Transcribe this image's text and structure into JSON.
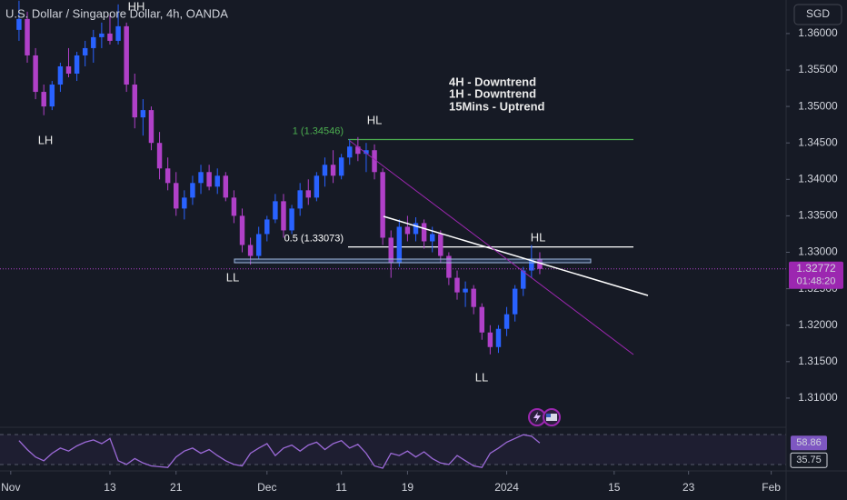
{
  "header": {
    "title": "U.S. Dollar / Singapore Dollar, 4h, OANDA",
    "currency": "SGD"
  },
  "chart_data": {
    "type": "candlestick",
    "x": [
      1,
      2,
      3,
      4,
      5,
      6,
      7,
      8,
      9,
      10,
      11,
      12,
      13,
      14,
      15,
      16,
      17,
      18,
      19,
      20,
      21,
      22,
      23,
      24,
      25,
      26,
      27,
      28,
      29,
      30,
      31,
      32,
      33,
      34,
      35,
      36,
      37,
      38,
      39,
      40,
      41,
      42,
      43,
      44,
      45,
      46,
      47,
      48,
      49,
      50,
      51,
      52,
      53,
      54,
      55,
      56,
      57,
      58,
      59,
      60,
      61,
      62,
      63,
      64
    ],
    "open": [
      1.3605,
      1.362,
      1.357,
      1.352,
      1.35,
      1.353,
      1.3555,
      1.3545,
      1.357,
      1.358,
      1.3595,
      1.36,
      1.359,
      1.361,
      1.353,
      1.3485,
      1.3495,
      1.345,
      1.3415,
      1.3395,
      1.336,
      1.3375,
      1.3395,
      1.341,
      1.339,
      1.3405,
      1.3375,
      1.335,
      1.331,
      1.3295,
      1.3325,
      1.3345,
      1.337,
      1.333,
      1.336,
      1.3385,
      1.3375,
      1.3405,
      1.342,
      1.3405,
      1.343,
      1.3445,
      1.3435,
      1.344,
      1.341,
      1.332,
      1.3285,
      1.3335,
      1.3325,
      1.334,
      1.3315,
      1.3325,
      1.3295,
      1.3265,
      1.3245,
      1.325,
      1.3225,
      1.319,
      1.317,
      1.3195,
      1.3215,
      1.325,
      1.3275,
      1.329
    ],
    "high": [
      1.3645,
      1.363,
      1.358,
      1.353,
      1.3535,
      1.356,
      1.358,
      1.3575,
      1.359,
      1.3605,
      1.3615,
      1.3625,
      1.364,
      1.3615,
      1.3545,
      1.351,
      1.35,
      1.3465,
      1.343,
      1.341,
      1.3385,
      1.3405,
      1.342,
      1.342,
      1.3415,
      1.341,
      1.3385,
      1.336,
      1.332,
      1.3335,
      1.335,
      1.338,
      1.338,
      1.3365,
      1.3395,
      1.34,
      1.341,
      1.343,
      1.344,
      1.3435,
      1.3455,
      1.3458,
      1.345,
      1.3448,
      1.3415,
      1.333,
      1.3345,
      1.335,
      1.3348,
      1.3345,
      1.3335,
      1.333,
      1.33,
      1.3275,
      1.326,
      1.3255,
      1.323,
      1.32,
      1.32,
      1.3225,
      1.3255,
      1.328,
      1.331,
      1.33
    ],
    "low": [
      1.359,
      1.356,
      1.351,
      1.3488,
      1.3495,
      1.352,
      1.354,
      1.3535,
      1.3555,
      1.356,
      1.358,
      1.3585,
      1.3585,
      1.352,
      1.347,
      1.346,
      1.344,
      1.34,
      1.3385,
      1.335,
      1.3345,
      1.3365,
      1.338,
      1.3385,
      1.338,
      1.337,
      1.334,
      1.33,
      1.3283,
      1.329,
      1.3315,
      1.334,
      1.332,
      1.3325,
      1.335,
      1.3365,
      1.337,
      1.339,
      1.3395,
      1.34,
      1.342,
      1.3425,
      1.341,
      1.34,
      1.331,
      1.3265,
      1.328,
      1.3315,
      1.3315,
      1.3305,
      1.33,
      1.3285,
      1.3255,
      1.3235,
      1.3225,
      1.3215,
      1.318,
      1.316,
      1.3162,
      1.3185,
      1.3205,
      1.324,
      1.3265,
      1.327
    ],
    "close": [
      1.362,
      1.357,
      1.352,
      1.35,
      1.353,
      1.3555,
      1.3545,
      1.357,
      1.358,
      1.3595,
      1.36,
      1.359,
      1.361,
      1.353,
      1.3485,
      1.3495,
      1.345,
      1.3415,
      1.3395,
      1.336,
      1.3375,
      1.3395,
      1.341,
      1.339,
      1.3405,
      1.3375,
      1.335,
      1.331,
      1.3295,
      1.3325,
      1.3345,
      1.337,
      1.333,
      1.336,
      1.3385,
      1.3375,
      1.3405,
      1.342,
      1.3405,
      1.343,
      1.3445,
      1.3435,
      1.344,
      1.341,
      1.332,
      1.3285,
      1.3335,
      1.3325,
      1.334,
      1.3315,
      1.3325,
      1.3295,
      1.3265,
      1.3245,
      1.325,
      1.3225,
      1.319,
      1.317,
      1.3195,
      1.3215,
      1.325,
      1.3275,
      1.329,
      1.32772
    ],
    "up_color": "#2962ff",
    "down_color": "#b040c8",
    "xlim": [
      -1.3,
      93.8
    ],
    "xticks": [
      {
        "value": 0,
        "label": "Nov"
      },
      {
        "value": 12,
        "label": "13"
      },
      {
        "value": 20,
        "label": "21"
      },
      {
        "value": 31,
        "label": "Dec"
      },
      {
        "value": 40,
        "label": "11"
      },
      {
        "value": 48,
        "label": "19"
      },
      {
        "value": 60,
        "label": "2024"
      },
      {
        "value": 73,
        "label": "15"
      },
      {
        "value": 82,
        "label": "23"
      },
      {
        "value": 92,
        "label": "Feb"
      }
    ],
    "ylim": [
      1.306,
      1.3646
    ],
    "yticks": [
      {
        "value": 1.31,
        "label": "1.31000"
      },
      {
        "value": 1.315,
        "label": "1.31500"
      },
      {
        "value": 1.32,
        "label": "1.32000"
      },
      {
        "value": 1.325,
        "label": "1.32500"
      },
      {
        "value": 1.33,
        "label": "1.33000"
      },
      {
        "value": 1.335,
        "label": "1.33500"
      },
      {
        "value": 1.34,
        "label": "1.34000"
      },
      {
        "value": 1.345,
        "label": "1.34500"
      },
      {
        "value": 1.35,
        "label": "1.35000"
      },
      {
        "value": 1.355,
        "label": "1.35500"
      },
      {
        "value": 1.36,
        "label": "1.36000"
      }
    ],
    "last_price": 1.32772,
    "countdown": "01:48:20",
    "fib_levels": [
      {
        "label": "1 (1.34546)",
        "value": 1.34546,
        "color": "#4caf50"
      },
      {
        "label": "0.5 (1.33073)",
        "value": 1.33073,
        "color": "#ffffff"
      }
    ],
    "annotations": [
      "LH",
      "HH",
      "HL",
      "LL",
      "HL",
      "LL"
    ],
    "notes": [
      "4H - Downtrend",
      "1H - Downtrend",
      "15Mins - Uptrend"
    ],
    "rsi": {
      "values": [
        62,
        50,
        40,
        35,
        45,
        52,
        48,
        55,
        60,
        63,
        58,
        65,
        35,
        30,
        38,
        32,
        28,
        27,
        26,
        40,
        48,
        52,
        45,
        50,
        42,
        35,
        30,
        28,
        45,
        52,
        58,
        42,
        52,
        56,
        48,
        56,
        60,
        50,
        58,
        62,
        52,
        57,
        45,
        28,
        25,
        45,
        42,
        48,
        40,
        47,
        38,
        32,
        30,
        42,
        35,
        28,
        26,
        45,
        52,
        60,
        65,
        70,
        68,
        58.86
      ],
      "color": "#9c6ad8",
      "ylim": [
        25,
        80
      ],
      "labels": [
        58.86,
        35.75
      ]
    }
  }
}
